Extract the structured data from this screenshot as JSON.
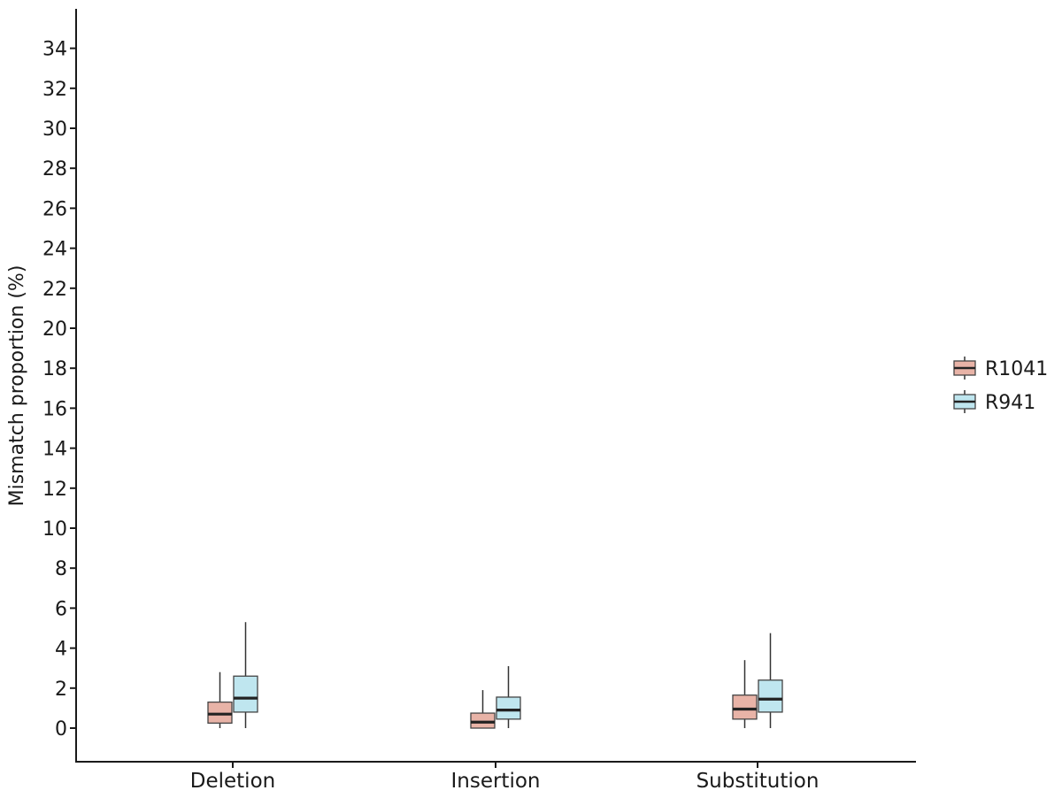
{
  "chart_data": {
    "type": "boxplot",
    "title": "",
    "xlabel": "",
    "ylabel": "Mismatch proportion (%)",
    "ylim": [
      -1.7,
      36
    ],
    "yticks": [
      0,
      2,
      4,
      6,
      8,
      10,
      12,
      14,
      16,
      18,
      20,
      22,
      24,
      26,
      28,
      30,
      32,
      34
    ],
    "categories": [
      "Deletion",
      "Insertion",
      "Substitution"
    ],
    "grid": false,
    "legend_position": "right",
    "series": [
      {
        "name": "R1041",
        "color": "#e8b3a7",
        "boxes": [
          {
            "whisker_low": 0.0,
            "q1": 0.25,
            "median": 0.7,
            "q3": 1.3,
            "whisker_high": 2.8
          },
          {
            "whisker_low": 0.0,
            "q1": 0.0,
            "median": 0.3,
            "q3": 0.75,
            "whisker_high": 1.9
          },
          {
            "whisker_low": 0.0,
            "q1": 0.45,
            "median": 0.95,
            "q3": 1.65,
            "whisker_high": 3.4
          }
        ]
      },
      {
        "name": "R941",
        "color": "#bfe6ef",
        "boxes": [
          {
            "whisker_low": 0.0,
            "q1": 0.8,
            "median": 1.5,
            "q3": 2.6,
            "whisker_high": 5.3
          },
          {
            "whisker_low": 0.0,
            "q1": 0.45,
            "median": 0.9,
            "q3": 1.55,
            "whisker_high": 3.1
          },
          {
            "whisker_low": 0.0,
            "q1": 0.8,
            "median": 1.45,
            "q3": 2.4,
            "whisker_high": 4.75
          }
        ]
      }
    ]
  }
}
